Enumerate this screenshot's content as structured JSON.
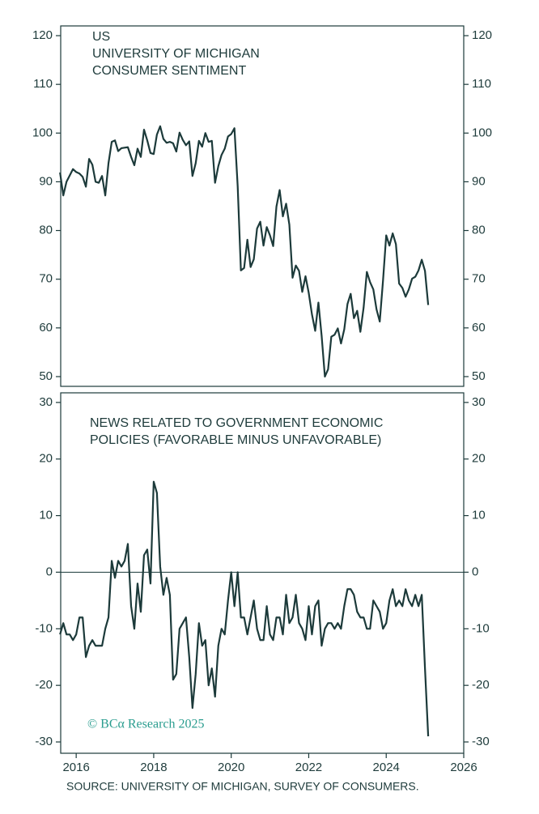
{
  "chart_data": [
    {
      "type": "line",
      "panel": "top",
      "title_lines": [
        "US",
        "UNIVERSITY OF MICHIGAN",
        "CONSUMER SENTIMENT"
      ],
      "color": "#1c3a3a",
      "xlim": [
        2015.6,
        2026
      ],
      "ylim": [
        48,
        122
      ],
      "yticks": [
        50,
        60,
        70,
        80,
        90,
        100,
        110,
        120
      ],
      "x": [
        2015.583,
        2015.667,
        2015.75,
        2015.833,
        2015.917,
        2016,
        2016.083,
        2016.167,
        2016.25,
        2016.333,
        2016.417,
        2016.5,
        2016.583,
        2016.667,
        2016.75,
        2016.833,
        2016.917,
        2017,
        2017.083,
        2017.167,
        2017.25,
        2017.333,
        2017.417,
        2017.5,
        2017.583,
        2017.667,
        2017.75,
        2017.833,
        2017.917,
        2018,
        2018.083,
        2018.167,
        2018.25,
        2018.333,
        2018.417,
        2018.5,
        2018.583,
        2018.667,
        2018.75,
        2018.833,
        2018.917,
        2019,
        2019.083,
        2019.167,
        2019.25,
        2019.333,
        2019.417,
        2019.5,
        2019.583,
        2019.667,
        2019.75,
        2019.833,
        2019.917,
        2020,
        2020.083,
        2020.167,
        2020.25,
        2020.333,
        2020.417,
        2020.5,
        2020.583,
        2020.667,
        2020.75,
        2020.833,
        2020.917,
        2021,
        2021.083,
        2021.167,
        2021.25,
        2021.333,
        2021.417,
        2021.5,
        2021.583,
        2021.667,
        2021.75,
        2021.833,
        2021.917,
        2022,
        2022.083,
        2022.167,
        2022.25,
        2022.333,
        2022.417,
        2022.5,
        2022.583,
        2022.667,
        2022.75,
        2022.833,
        2022.917,
        2023,
        2023.083,
        2023.167,
        2023.25,
        2023.333,
        2023.417,
        2023.5,
        2023.583,
        2023.667,
        2023.75,
        2023.833,
        2023.917,
        2024,
        2024.083,
        2024.167,
        2024.25,
        2024.333,
        2024.417,
        2024.5,
        2024.583,
        2024.667,
        2024.75,
        2024.833,
        2024.917,
        2025,
        2025.083
      ],
      "values": [
        91.9,
        87.2,
        90.0,
        91.3,
        92.6,
        92.0,
        91.7,
        91.0,
        89.0,
        94.7,
        93.5,
        90.0,
        89.8,
        91.2,
        87.2,
        93.8,
        98.2,
        98.5,
        96.3,
        96.9,
        97.0,
        97.1,
        95.1,
        93.4,
        96.8,
        95.1,
        100.7,
        98.5,
        95.9,
        95.7,
        99.7,
        101.4,
        98.8,
        98.0,
        98.2,
        97.9,
        96.2,
        100.1,
        98.6,
        97.5,
        98.3,
        91.2,
        93.8,
        98.4,
        97.2,
        100.0,
        98.2,
        98.4,
        89.8,
        93.2,
        95.5,
        96.8,
        99.3,
        99.8,
        101.0,
        89.1,
        71.8,
        72.3,
        78.1,
        72.5,
        74.1,
        80.4,
        81.8,
        76.9,
        80.7,
        79.0,
        76.8,
        84.9,
        88.3,
        82.9,
        85.5,
        81.2,
        70.3,
        72.8,
        71.7,
        67.4,
        70.6,
        67.2,
        62.8,
        59.4,
        65.2,
        58.4,
        50.0,
        51.5,
        58.2,
        58.6,
        59.9,
        56.8,
        59.7,
        64.9,
        67.0,
        62.0,
        63.5,
        59.2,
        64.2,
        71.5,
        69.4,
        67.9,
        63.8,
        61.3,
        69.7,
        79.0,
        76.9,
        79.4,
        77.2,
        69.1,
        68.2,
        66.4,
        67.9,
        70.1,
        70.5,
        71.8,
        74.0,
        71.7,
        64.7
      ]
    },
    {
      "type": "line",
      "panel": "bottom",
      "title_lines": [
        "NEWS RELATED TO GOVERNMENT ECONOMIC",
        "POLICIES (FAVORABLE MINUS UNFAVORABLE)"
      ],
      "color": "#1c3a3a",
      "xlim": [
        2015.6,
        2026
      ],
      "ylim": [
        -32,
        31.7
      ],
      "yticks": [
        -30,
        -20,
        -10,
        0,
        10,
        20,
        30
      ],
      "xticks": [
        2016,
        2018,
        2020,
        2022,
        2024,
        2026
      ],
      "reference_line": 0,
      "x": [
        2015.583,
        2015.667,
        2015.75,
        2015.833,
        2015.917,
        2016,
        2016.083,
        2016.167,
        2016.25,
        2016.333,
        2016.417,
        2016.5,
        2016.583,
        2016.667,
        2016.75,
        2016.833,
        2016.917,
        2017,
        2017.083,
        2017.167,
        2017.25,
        2017.333,
        2017.417,
        2017.5,
        2017.583,
        2017.667,
        2017.75,
        2017.833,
        2017.917,
        2018,
        2018.083,
        2018.167,
        2018.25,
        2018.333,
        2018.417,
        2018.5,
        2018.583,
        2018.667,
        2018.75,
        2018.833,
        2018.917,
        2019,
        2019.083,
        2019.167,
        2019.25,
        2019.333,
        2019.417,
        2019.5,
        2019.583,
        2019.667,
        2019.75,
        2019.833,
        2019.917,
        2020,
        2020.083,
        2020.167,
        2020.25,
        2020.333,
        2020.417,
        2020.5,
        2020.583,
        2020.667,
        2020.75,
        2020.833,
        2020.917,
        2021,
        2021.083,
        2021.167,
        2021.25,
        2021.333,
        2021.417,
        2021.5,
        2021.583,
        2021.667,
        2021.75,
        2021.833,
        2021.917,
        2022,
        2022.083,
        2022.167,
        2022.25,
        2022.333,
        2022.417,
        2022.5,
        2022.583,
        2022.667,
        2022.75,
        2022.833,
        2022.917,
        2023,
        2023.083,
        2023.167,
        2023.25,
        2023.333,
        2023.417,
        2023.5,
        2023.583,
        2023.667,
        2023.75,
        2023.833,
        2023.917,
        2024,
        2024.083,
        2024.167,
        2024.25,
        2024.333,
        2024.417,
        2024.5,
        2024.583,
        2024.667,
        2024.75,
        2024.833,
        2024.917,
        2025,
        2025.083
      ],
      "values": [
        -11,
        -9,
        -11,
        -11,
        -12,
        -11,
        -8,
        -8,
        -15,
        -13,
        -12,
        -13,
        -13,
        -13,
        -10,
        -8,
        2,
        -1,
        2,
        1,
        2,
        5,
        -6,
        -10,
        -2,
        -7,
        3,
        4,
        -2,
        16,
        14,
        1,
        -4,
        -1,
        -4,
        -19,
        -18,
        -10,
        -9,
        -8,
        -15,
        -24,
        -18,
        -9,
        -13,
        -12,
        -20,
        -17,
        -22,
        -13,
        -10,
        -11,
        -5,
        0,
        -6,
        0,
        -8,
        -8,
        -11,
        -8,
        -5,
        -10,
        -12,
        -12,
        -6,
        -11,
        -12,
        -8,
        -8,
        -11,
        -4,
        -9,
        -8,
        -4,
        -9,
        -10,
        -12,
        -6,
        -11,
        -6,
        -5,
        -13,
        -10,
        -9,
        -9,
        -10,
        -9,
        -10,
        -6,
        -3,
        -3,
        -4,
        -7,
        -8,
        -8,
        -10,
        -10,
        -5,
        -6,
        -7,
        -10,
        -9,
        -5,
        -3,
        -6,
        -5,
        -6,
        -3,
        -5,
        -6,
        -4,
        -6,
        -4,
        -17,
        -29
      ],
      "watermark": "© BCα Research 2025"
    }
  ],
  "source": "SOURCE: UNIVERSITY OF MICHIGAN, SURVEY OF CONSUMERS."
}
